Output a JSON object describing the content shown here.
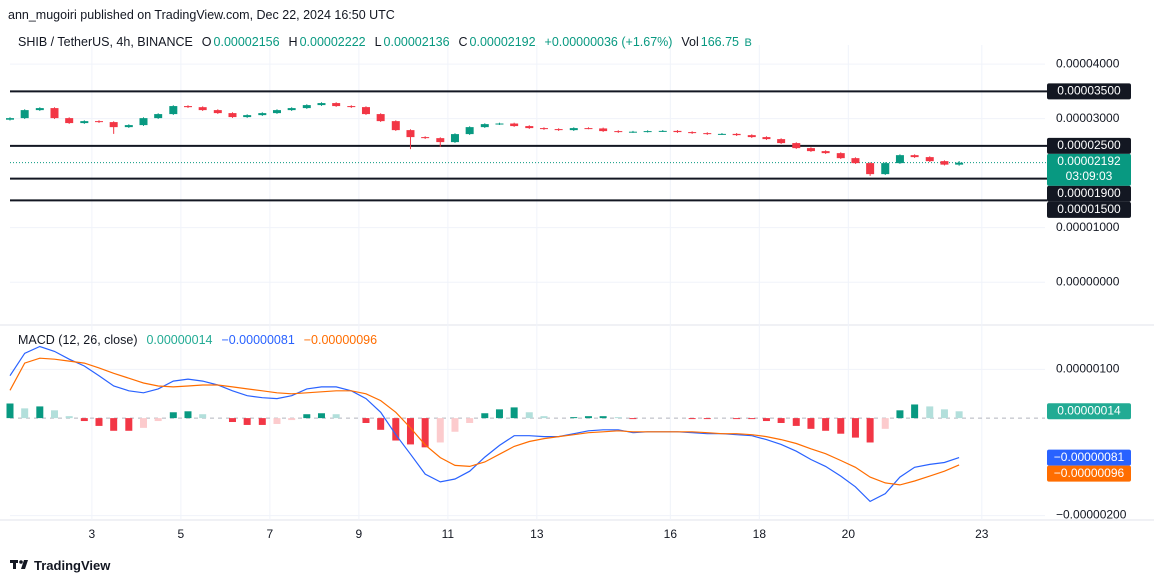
{
  "header": "ann_mugoiri published on TradingView.com, Dec 22, 2024 16:50 UTC",
  "footer": "TradingView",
  "chart_data": [
    {
      "type": "candlestick",
      "title": "SHIB / TetherUS, 4h, BINANCE",
      "ohlc": [
        {
          "label": "O",
          "value": "0.00002156"
        },
        {
          "label": "H",
          "value": "0.00002222"
        },
        {
          "label": "L",
          "value": "0.00002136"
        },
        {
          "label": "C",
          "value": "0.00002192"
        }
      ],
      "change": "+0.00000036 (+1.67%)",
      "volume_label": "Vol",
      "volume": "166.75",
      "volume_unit": "B",
      "x": [
        1.16,
        1.49,
        1.83,
        2.16,
        2.49,
        2.83,
        3.16,
        3.49,
        3.83,
        4.16,
        4.49,
        4.83,
        5.16,
        5.49,
        5.83,
        6.16,
        6.49,
        6.83,
        7.16,
        7.49,
        7.83,
        8.16,
        8.49,
        8.83,
        9.16,
        9.49,
        9.83,
        10.16,
        10.49,
        10.83,
        11.16,
        11.49,
        11.83,
        12.16,
        12.49,
        12.83,
        13.16,
        13.49,
        13.83,
        14.16,
        14.49,
        14.83,
        15.16,
        15.49,
        15.83,
        16.16,
        16.49,
        16.83,
        17.16,
        17.49,
        17.83,
        18.16,
        18.49,
        18.83,
        19.16,
        19.49,
        19.83,
        20.16,
        20.49,
        20.83,
        21.16,
        21.49,
        21.83,
        22.16,
        22.49
      ],
      "open": [
        2.98e-05,
        3.009e-05,
        3.156e-05,
        3.193e-05,
        3.009e-05,
        2.918e-05,
        2.954e-05,
        2.936e-05,
        2.844e-05,
        2.881e-05,
        3.009e-05,
        3.083e-05,
        3.23e-05,
        3.21e-05,
        3.156e-05,
        3.101e-05,
        3.028e-05,
        3.064e-05,
        3.101e-05,
        3.156e-05,
        3.193e-05,
        3.248e-05,
        3.285e-05,
        3.23e-05,
        3.211e-05,
        3.083e-05,
        2.954e-05,
        2.789e-05,
        2.661e-05,
        2.642e-05,
        2.569e-05,
        2.716e-05,
        2.844e-05,
        2.899e-05,
        2.91e-05,
        2.863e-05,
        2.826e-05,
        2.808e-05,
        2.789e-05,
        2.826e-05,
        2.82e-05,
        2.771e-05,
        2.753e-05,
        2.76e-05,
        2.771e-05,
        2.775e-05,
        2.753e-05,
        2.734e-05,
        2.716e-05,
        2.72e-05,
        2.697e-05,
        2.661e-05,
        2.624e-05,
        2.551e-05,
        2.459e-05,
        2.404e-05,
        2.367e-05,
        2.275e-05,
        2.184e-05,
        1.982e-05,
        2.184e-05,
        2.33e-05,
        2.294e-05,
        2.22e-05,
        2.156e-05
      ],
      "high": [
        3.024e-05,
        3.171e-05,
        3.208e-05,
        3.208e-05,
        3.024e-05,
        2.969e-05,
        2.969e-05,
        2.951e-05,
        2.896e-05,
        3.024e-05,
        3.098e-05,
        3.245e-05,
        3.245e-05,
        3.225e-05,
        3.171e-05,
        3.116e-05,
        3.079e-05,
        3.116e-05,
        3.171e-05,
        3.208e-05,
        3.263e-05,
        3.3e-05,
        3.3e-05,
        3.245e-05,
        3.226e-05,
        3.098e-05,
        2.969e-05,
        2.804e-05,
        2.676e-05,
        2.657e-05,
        2.731e-05,
        2.859e-05,
        2.914e-05,
        2.925e-05,
        2.925e-05,
        2.878e-05,
        2.841e-05,
        2.823e-05,
        2.841e-05,
        2.841e-05,
        2.835e-05,
        2.786e-05,
        2.775e-05,
        2.786e-05,
        2.79e-05,
        2.79e-05,
        2.768e-05,
        2.749e-05,
        2.735e-05,
        2.735e-05,
        2.712e-05,
        2.676e-05,
        2.639e-05,
        2.566e-05,
        2.474e-05,
        2.419e-05,
        2.382e-05,
        2.29e-05,
        2.199e-05,
        2.2e-05,
        2.345e-05,
        2.345e-05,
        2.309e-05,
        2.235e-05,
        2.222e-05
      ],
      "low": [
        2.965e-05,
        2.994e-05,
        3.141e-05,
        2.994e-05,
        2.903e-05,
        2.903e-05,
        2.921e-05,
        2.72e-05,
        2.829e-05,
        2.866e-05,
        2.994e-05,
        3.068e-05,
        3.195e-05,
        3.141e-05,
        3.086e-05,
        3.013e-05,
        3.013e-05,
        3.049e-05,
        3.086e-05,
        3.141e-05,
        3.178e-05,
        3.233e-05,
        3.215e-05,
        3.196e-05,
        3.068e-05,
        2.939e-05,
        2.774e-05,
        2.44e-05,
        2.627e-05,
        2.48e-05,
        2.554e-05,
        2.701e-05,
        2.829e-05,
        2.884e-05,
        2.848e-05,
        2.811e-05,
        2.793e-05,
        2.774e-05,
        2.774e-05,
        2.805e-05,
        2.756e-05,
        2.738e-05,
        2.738e-05,
        2.745e-05,
        2.756e-05,
        2.738e-05,
        2.719e-05,
        2.701e-05,
        2.701e-05,
        2.682e-05,
        2.646e-05,
        2.609e-05,
        2.536e-05,
        2.444e-05,
        2.389e-05,
        2.352e-05,
        2.26e-05,
        2.169e-05,
        1.95e-05,
        1.967e-05,
        2.169e-05,
        2.279e-05,
        2.205e-05,
        2.141e-05,
        2.136e-05
      ],
      "close": [
        3.009e-05,
        3.156e-05,
        3.193e-05,
        3.009e-05,
        2.918e-05,
        2.954e-05,
        2.936e-05,
        2.844e-05,
        2.881e-05,
        3.009e-05,
        3.083e-05,
        3.23e-05,
        3.21e-05,
        3.156e-05,
        3.101e-05,
        3.028e-05,
        3.064e-05,
        3.101e-05,
        3.156e-05,
        3.193e-05,
        3.248e-05,
        3.285e-05,
        3.23e-05,
        3.211e-05,
        3.083e-05,
        2.954e-05,
        2.789e-05,
        2.661e-05,
        2.642e-05,
        2.569e-05,
        2.716e-05,
        2.844e-05,
        2.899e-05,
        2.91e-05,
        2.863e-05,
        2.826e-05,
        2.808e-05,
        2.789e-05,
        2.826e-05,
        2.82e-05,
        2.771e-05,
        2.753e-05,
        2.76e-05,
        2.771e-05,
        2.775e-05,
        2.753e-05,
        2.734e-05,
        2.716e-05,
        2.72e-05,
        2.697e-05,
        2.661e-05,
        2.624e-05,
        2.551e-05,
        2.459e-05,
        2.404e-05,
        2.367e-05,
        2.275e-05,
        2.184e-05,
        1.982e-05,
        2.184e-05,
        2.33e-05,
        2.294e-05,
        2.22e-05,
        2.156e-05,
        2.192e-05
      ],
      "xlim": [
        1.16,
        24.42
      ],
      "xticks": [
        3,
        5,
        7,
        9,
        11,
        13,
        16,
        18,
        20,
        23
      ],
      "ylim": [
        -7.3e-06,
        4.35e-05
      ],
      "yticks": [
        {
          "value": 4e-05,
          "label": "0.00004000"
        },
        {
          "value": 3e-05,
          "label": "0.00003000"
        },
        {
          "value": 1e-05,
          "label": "0.00001000"
        },
        {
          "value": 0,
          "label": "0.00000000"
        }
      ],
      "levels": [
        {
          "value": 3.5e-05,
          "label": "0.00003500"
        },
        {
          "value": 2.5e-05,
          "label": "0.00002500"
        },
        {
          "value": 1.9e-05,
          "label": "0.00001900"
        },
        {
          "value": 1.5e-05,
          "label": "0.00001500"
        }
      ],
      "last_price": {
        "value": 2.192e-05,
        "label": "0.00002192",
        "countdown": "03:09:03"
      },
      "up_color": "#089981",
      "down_color": "#f23645",
      "level_color": "#131722",
      "grid": true
    },
    {
      "type": "macd",
      "title": "MACD (12, 26, close)",
      "histogram": [
        3e-07,
        2e-07,
        2.4e-07,
        1.6e-07,
        4e-08,
        -6e-08,
        -1.6e-07,
        -2.6e-07,
        -2.6e-07,
        -2e-07,
        -6e-08,
        1.2e-07,
        1.4e-07,
        8e-08,
        0,
        -8e-08,
        -1.4e-07,
        -1.4e-07,
        -1.2e-07,
        -4e-08,
        8e-08,
        1e-07,
        8e-08,
        0,
        -1e-07,
        -2.4e-07,
        -4.6e-07,
        -5.4e-07,
        -6e-07,
        -5e-07,
        -2.8e-07,
        -1e-07,
        1e-07,
        1.8e-07,
        2.2e-07,
        1.2e-07,
        4e-08,
        0,
        2e-08,
        4e-08,
        4e-08,
        2e-08,
        -2e-08,
        0,
        0,
        0,
        -2e-08,
        -2e-08,
        0,
        -2e-08,
        -2e-08,
        -6e-08,
        -1e-07,
        -1.6e-07,
        -2.2e-07,
        -2.6e-07,
        -3.2e-07,
        -4e-07,
        -5e-07,
        -2.2e-07,
        1.6e-07,
        2.8e-07,
        2.4e-07,
        1.8e-07,
        1.4e-07
      ],
      "macd": [
        8.7e-07,
        1.33e-06,
        1.47e-06,
        1.37e-06,
        1.21e-06,
        1.07e-06,
        8.7e-07,
        6.6e-07,
        5.6e-07,
        5.2e-07,
        6e-07,
        7.6e-07,
        8e-07,
        7.6e-07,
        6.8e-07,
        5.6e-07,
        4.6e-07,
        4.2e-07,
        4e-07,
        4.6e-07,
        6e-07,
        6.4e-07,
        6.4e-07,
        5.6e-07,
        4e-07,
        1.2e-07,
        -3.4e-07,
        -7.4e-07,
        -1.15e-06,
        -1.31e-06,
        -1.25e-06,
        -1.09e-06,
        -8e-07,
        -5.6e-07,
        -3.6e-07,
        -3.6e-07,
        -3.8e-07,
        -3.8e-07,
        -3.2e-07,
        -2.6e-07,
        -2.4e-07,
        -2.4e-07,
        -3e-07,
        -2.8e-07,
        -2.8e-07,
        -2.8e-07,
        -3e-07,
        -3.2e-07,
        -3.2e-07,
        -3.4e-07,
        -3.6e-07,
        -4.4e-07,
        -5.4e-07,
        -6.8e-07,
        -8.5e-07,
        -9.9e-07,
        -1.19e-06,
        -1.41e-06,
        -1.71e-06,
        -1.55e-06,
        -1.21e-06,
        -1.01e-06,
        -9.5e-07,
        -9.1e-07,
        -8.1e-07
      ],
      "signal": [
        5.7e-07,
        1.13e-06,
        1.23e-06,
        1.21e-06,
        1.17e-06,
        1.13e-06,
        1.03e-06,
        9.2e-07,
        8.2e-07,
        7.2e-07,
        6.6e-07,
        6.4e-07,
        6.6e-07,
        6.8e-07,
        6.8e-07,
        6.4e-07,
        6e-07,
        5.6e-07,
        5.2e-07,
        5e-07,
        5.2e-07,
        5.4e-07,
        5.6e-07,
        5.6e-07,
        5e-07,
        3.6e-07,
        1.2e-07,
        -2e-07,
        -5.5e-07,
        -8.1e-07,
        -9.7e-07,
        -9.9e-07,
        -9e-07,
        -7.4e-07,
        -5.8e-07,
        -4.8e-07,
        -4.2e-07,
        -3.8e-07,
        -3.4e-07,
        -3e-07,
        -2.8e-07,
        -2.6e-07,
        -2.8e-07,
        -2.8e-07,
        -2.8e-07,
        -2.8e-07,
        -2.8e-07,
        -3e-07,
        -3.2e-07,
        -3.2e-07,
        -3.4e-07,
        -3.8e-07,
        -4.4e-07,
        -5.2e-07,
        -6.3e-07,
        -7.3e-07,
        -8.7e-07,
        -1.01e-06,
        -1.21e-06,
        -1.33e-06,
        -1.37e-06,
        -1.29e-06,
        -1.19e-06,
        -1.09e-06,
        -9.6e-07
      ],
      "histogram_label": "0.00000014",
      "macd_label": "−0.00000081",
      "signal_label": "−0.00000096",
      "macd_color": "#2962ff",
      "signal_color": "#ff6d00",
      "hist_colors": [
        "#089981",
        "#b2dfdb",
        "#f23645",
        "#fccbcd"
      ],
      "ylim": [
        -2.05e-06,
        1.87e-06
      ],
      "yticks": [
        {
          "value": 1e-06,
          "label": "0.00000100"
        },
        {
          "value": -2e-06,
          "label": "−0.00000200"
        }
      ]
    }
  ]
}
